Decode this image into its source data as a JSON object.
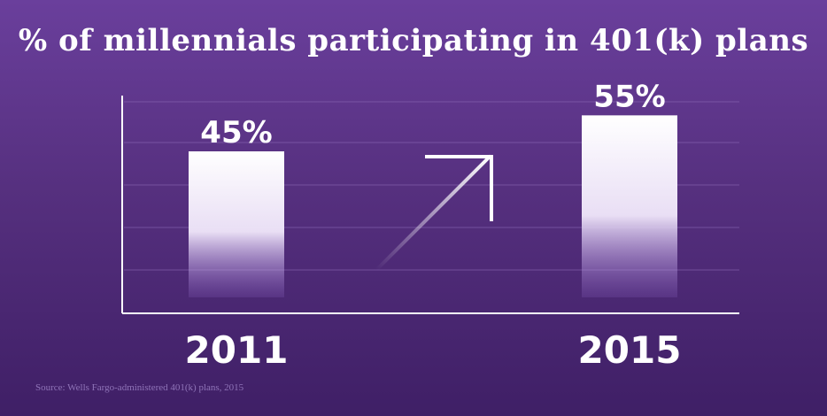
{
  "chart_data": {
    "type": "bar",
    "title": "% of millennials participating in 401(k) plans",
    "categories": [
      "2011",
      "2015"
    ],
    "values": [
      45,
      55
    ],
    "value_labels": [
      "45%",
      "55%"
    ],
    "ylim": [
      0,
      60
    ],
    "grid": true,
    "trend_arrow": "up",
    "source": "Source: Wells Fargo-administered 401(k) plans, 2015"
  },
  "colors": {
    "background_top": "#6a3f9c",
    "background_bottom": "#3f1f66",
    "bar_top": "#ffffff",
    "bar_bottom": "#8f67c8",
    "grid": "#8a68b4",
    "text": "#ffffff"
  }
}
